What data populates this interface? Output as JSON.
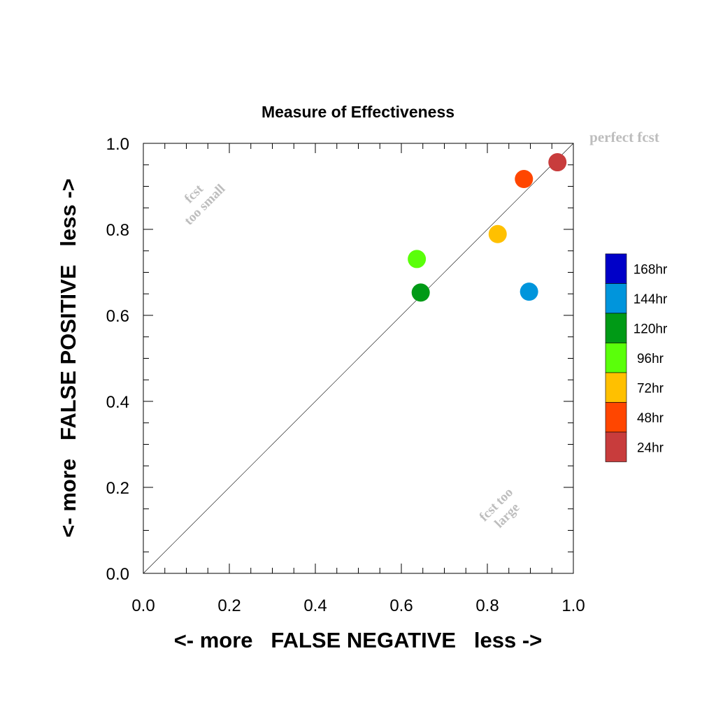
{
  "chart_data": {
    "type": "scatter",
    "title": "Measure of Effectiveness",
    "xlabel": "<- more   FALSE NEGATIVE   less ->",
    "ylabel": "<- more   FALSE POSITIVE   less ->",
    "xlim": [
      0.0,
      1.0
    ],
    "ylim": [
      0.0,
      1.0
    ],
    "x_ticks": [
      "0.0",
      "0.2",
      "0.4",
      "0.6",
      "0.8",
      "1.0"
    ],
    "y_ticks": [
      "0.0",
      "0.2",
      "0.4",
      "0.6",
      "0.8",
      "1.0"
    ],
    "grid": false,
    "diagonal_reference_line": true,
    "legend_position": "right",
    "annotations": {
      "perfect": "perfect fcst",
      "too_small_1": "fcst",
      "too_small_2": "too small",
      "too_large_1": "fcst too",
      "too_large_2": "large"
    },
    "series": [
      {
        "name": "168hr",
        "color": "#0000c8",
        "points": []
      },
      {
        "name": "144hr",
        "color": "#0095dc",
        "points": [
          {
            "x": 0.897,
            "y": 0.655
          }
        ]
      },
      {
        "name": "120hr",
        "color": "#009a16",
        "points": [
          {
            "x": 0.645,
            "y": 0.653
          }
        ]
      },
      {
        "name": "96hr",
        "color": "#5aff0a",
        "points": [
          {
            "x": 0.636,
            "y": 0.731
          }
        ]
      },
      {
        "name": "72hr",
        "color": "#ffc000",
        "points": [
          {
            "x": 0.824,
            "y": 0.789
          }
        ]
      },
      {
        "name": "48hr",
        "color": "#ff4600",
        "points": [
          {
            "x": 0.885,
            "y": 0.917
          }
        ]
      },
      {
        "name": "24hr",
        "color": "#c83c3c",
        "points": [
          {
            "x": 0.963,
            "y": 0.956
          }
        ]
      }
    ]
  }
}
